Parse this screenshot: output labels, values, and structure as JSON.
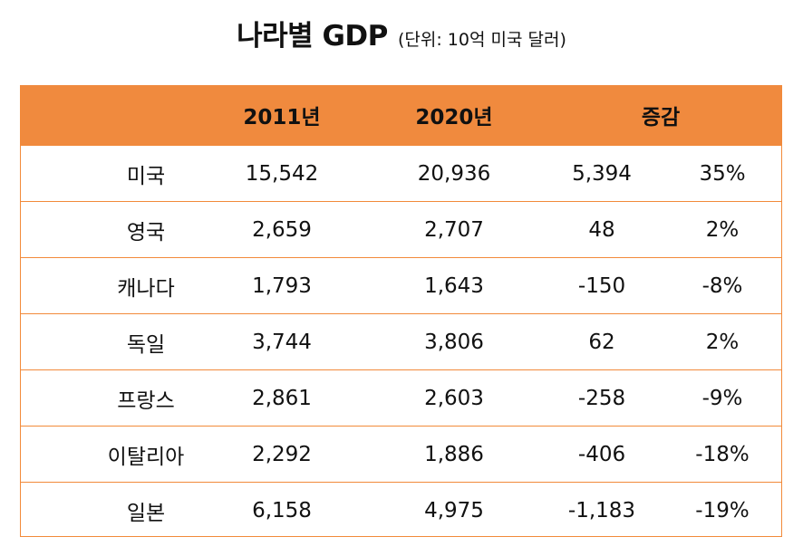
{
  "chart_data": {
    "type": "table",
    "title": "나라별 GDP",
    "subtitle": "(단위: 10억 미국 달러)",
    "columns": [
      "",
      "2011년",
      "2020년",
      "증감"
    ],
    "rows": [
      {
        "country": "미국",
        "y2011": "15,542",
        "y2020": "20,936",
        "change": "5,394",
        "pct": "35%"
      },
      {
        "country": "영국",
        "y2011": "2,659",
        "y2020": "2,707",
        "change": "48",
        "pct": "2%"
      },
      {
        "country": "캐나다",
        "y2011": "1,793",
        "y2020": "1,643",
        "change": "-150",
        "pct": "-8%"
      },
      {
        "country": "독일",
        "y2011": "3,744",
        "y2020": "3,806",
        "change": "62",
        "pct": "2%"
      },
      {
        "country": "프랑스",
        "y2011": "2,861",
        "y2020": "2,603",
        "change": "-258",
        "pct": "-9%"
      },
      {
        "country": "이탈리아",
        "y2011": "2,292",
        "y2020": "1,886",
        "change": "-406",
        "pct": "-18%"
      },
      {
        "country": "일본",
        "y2011": "6,158",
        "y2020": "4,975",
        "change": "-1,183",
        "pct": "-19%"
      }
    ]
  },
  "colors": {
    "header_bg": "#f08a3e",
    "border": "#f28a3a",
    "text": "#111111"
  }
}
